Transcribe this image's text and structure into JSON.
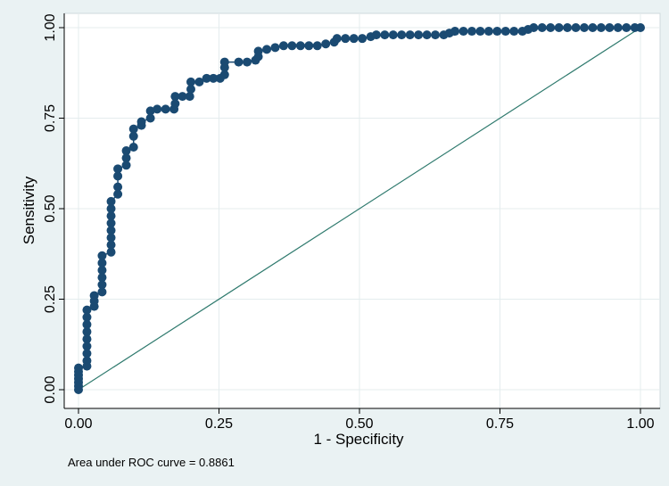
{
  "chart_data": {
    "type": "scatter",
    "xlabel": "1 - Specificity",
    "ylabel": "Sensitivity",
    "xlim": [
      0,
      1
    ],
    "ylim": [
      0,
      1
    ],
    "x_ticks": [
      "0.00",
      "0.25",
      "0.50",
      "0.75",
      "1.00"
    ],
    "y_ticks": [
      "0.00",
      "0.25",
      "0.50",
      "0.75",
      "1.00"
    ],
    "grid": true,
    "note": "Area under ROC curve = 0.8861",
    "colors": {
      "background": "#eaf2f3",
      "plot_area": "#ffffff",
      "points": "#1a4a72",
      "reference_line": "#2f7a6e",
      "grid": "#e4ecee"
    },
    "series": [
      {
        "style": "points-connected",
        "points": [
          [
            0.0,
            0.0
          ],
          [
            0.0,
            0.01
          ],
          [
            0.0,
            0.02
          ],
          [
            0.0,
            0.03
          ],
          [
            0.0,
            0.04
          ],
          [
            0.0,
            0.05
          ],
          [
            0.0,
            0.06
          ],
          [
            0.015,
            0.065
          ],
          [
            0.015,
            0.08
          ],
          [
            0.015,
            0.1
          ],
          [
            0.015,
            0.12
          ],
          [
            0.015,
            0.14
          ],
          [
            0.015,
            0.16
          ],
          [
            0.015,
            0.18
          ],
          [
            0.015,
            0.2
          ],
          [
            0.015,
            0.22
          ],
          [
            0.028,
            0.23
          ],
          [
            0.028,
            0.245
          ],
          [
            0.028,
            0.26
          ],
          [
            0.042,
            0.27
          ],
          [
            0.042,
            0.29
          ],
          [
            0.042,
            0.31
          ],
          [
            0.042,
            0.33
          ],
          [
            0.042,
            0.35
          ],
          [
            0.042,
            0.37
          ],
          [
            0.058,
            0.38
          ],
          [
            0.058,
            0.4
          ],
          [
            0.058,
            0.42
          ],
          [
            0.058,
            0.44
          ],
          [
            0.058,
            0.46
          ],
          [
            0.058,
            0.48
          ],
          [
            0.058,
            0.5
          ],
          [
            0.058,
            0.52
          ],
          [
            0.07,
            0.54
          ],
          [
            0.07,
            0.56
          ],
          [
            0.07,
            0.59
          ],
          [
            0.07,
            0.61
          ],
          [
            0.085,
            0.62
          ],
          [
            0.085,
            0.64
          ],
          [
            0.085,
            0.66
          ],
          [
            0.098,
            0.67
          ],
          [
            0.098,
            0.7
          ],
          [
            0.098,
            0.72
          ],
          [
            0.112,
            0.73
          ],
          [
            0.112,
            0.74
          ],
          [
            0.128,
            0.75
          ],
          [
            0.128,
            0.77
          ],
          [
            0.14,
            0.775
          ],
          [
            0.155,
            0.775
          ],
          [
            0.17,
            0.775
          ],
          [
            0.172,
            0.79
          ],
          [
            0.172,
            0.81
          ],
          [
            0.185,
            0.81
          ],
          [
            0.198,
            0.81
          ],
          [
            0.2,
            0.83
          ],
          [
            0.2,
            0.85
          ],
          [
            0.215,
            0.85
          ],
          [
            0.228,
            0.86
          ],
          [
            0.24,
            0.86
          ],
          [
            0.252,
            0.86
          ],
          [
            0.26,
            0.87
          ],
          [
            0.26,
            0.89
          ],
          [
            0.26,
            0.905
          ],
          [
            0.285,
            0.905
          ],
          [
            0.3,
            0.905
          ],
          [
            0.315,
            0.91
          ],
          [
            0.32,
            0.92
          ],
          [
            0.32,
            0.935
          ],
          [
            0.335,
            0.94
          ],
          [
            0.35,
            0.945
          ],
          [
            0.365,
            0.95
          ],
          [
            0.38,
            0.95
          ],
          [
            0.395,
            0.95
          ],
          [
            0.41,
            0.95
          ],
          [
            0.425,
            0.95
          ],
          [
            0.44,
            0.955
          ],
          [
            0.455,
            0.96
          ],
          [
            0.46,
            0.97
          ],
          [
            0.475,
            0.97
          ],
          [
            0.49,
            0.97
          ],
          [
            0.505,
            0.97
          ],
          [
            0.52,
            0.975
          ],
          [
            0.53,
            0.98
          ],
          [
            0.545,
            0.98
          ],
          [
            0.56,
            0.98
          ],
          [
            0.575,
            0.98
          ],
          [
            0.59,
            0.98
          ],
          [
            0.605,
            0.98
          ],
          [
            0.62,
            0.98
          ],
          [
            0.635,
            0.98
          ],
          [
            0.65,
            0.98
          ],
          [
            0.66,
            0.985
          ],
          [
            0.67,
            0.99
          ],
          [
            0.685,
            0.99
          ],
          [
            0.7,
            0.99
          ],
          [
            0.715,
            0.99
          ],
          [
            0.73,
            0.99
          ],
          [
            0.745,
            0.99
          ],
          [
            0.76,
            0.99
          ],
          [
            0.775,
            0.99
          ],
          [
            0.79,
            0.99
          ],
          [
            0.8,
            0.995
          ],
          [
            0.81,
            1.0
          ],
          [
            0.825,
            1.0
          ],
          [
            0.84,
            1.0
          ],
          [
            0.855,
            1.0
          ],
          [
            0.87,
            1.0
          ],
          [
            0.885,
            1.0
          ],
          [
            0.9,
            1.0
          ],
          [
            0.915,
            1.0
          ],
          [
            0.93,
            1.0
          ],
          [
            0.945,
            1.0
          ],
          [
            0.96,
            1.0
          ],
          [
            0.975,
            1.0
          ],
          [
            0.99,
            1.0
          ],
          [
            1.0,
            1.0
          ]
        ]
      },
      {
        "style": "reference-line",
        "points": [
          [
            0,
            0
          ],
          [
            1,
            1
          ]
        ]
      }
    ]
  }
}
